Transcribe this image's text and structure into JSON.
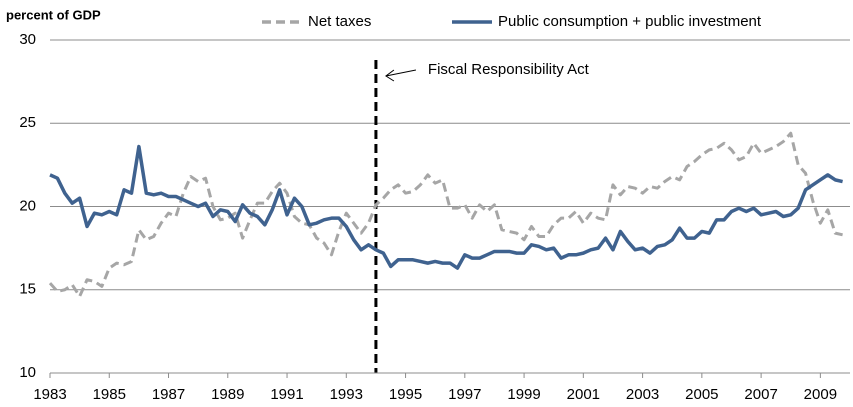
{
  "chart_data": {
    "type": "line",
    "y_label": "percent of GDP",
    "annotation": "Fiscal Responsibility Act",
    "event_x": 1994,
    "x": [
      1983,
      1983.25,
      1983.5,
      1983.75,
      1984,
      1984.25,
      1984.5,
      1984.75,
      1985,
      1985.25,
      1985.5,
      1985.75,
      1986,
      1986.25,
      1986.5,
      1986.75,
      1987,
      1987.25,
      1987.5,
      1987.75,
      1988,
      1988.25,
      1988.5,
      1988.75,
      1989,
      1989.25,
      1989.5,
      1989.75,
      1990,
      1990.25,
      1990.5,
      1990.75,
      1991,
      1991.25,
      1991.5,
      1991.75,
      1992,
      1992.25,
      1992.5,
      1992.75,
      1993,
      1993.25,
      1993.5,
      1993.75,
      1994,
      1994.25,
      1994.5,
      1994.75,
      1995,
      1995.25,
      1995.5,
      1995.75,
      1996,
      1996.25,
      1996.5,
      1996.75,
      1997,
      1997.25,
      1997.5,
      1997.75,
      1998,
      1998.25,
      1998.5,
      1998.75,
      1999,
      1999.25,
      1999.5,
      1999.75,
      2000,
      2000.25,
      2000.5,
      2000.75,
      2001,
      2001.25,
      2001.5,
      2001.75,
      2002,
      2002.25,
      2002.5,
      2002.75,
      2003,
      2003.25,
      2003.5,
      2003.75,
      2004,
      2004.25,
      2004.5,
      2004.75,
      2005,
      2005.25,
      2005.5,
      2005.75,
      2006,
      2006.25,
      2006.5,
      2006.75,
      2007,
      2007.25,
      2007.5,
      2007.75,
      2008,
      2008.25,
      2008.5,
      2008.75,
      2009,
      2009.25,
      2009.5,
      2009.75
    ],
    "series": [
      {
        "name": "Net taxes",
        "color": "#a6a6a6",
        "dashed": true,
        "values": [
          15.4,
          14.9,
          15.0,
          15.3,
          14.6,
          15.6,
          15.5,
          15.2,
          16.3,
          16.6,
          16.5,
          16.7,
          18.6,
          18.0,
          18.2,
          19.0,
          19.6,
          19.4,
          20.8,
          21.8,
          21.5,
          21.7,
          20.0,
          19.2,
          19.3,
          19.6,
          18.1,
          19.2,
          20.2,
          20.2,
          20.9,
          21.4,
          20.8,
          19.4,
          19.0,
          18.9,
          18.1,
          17.8,
          17.1,
          18.5,
          19.6,
          19.0,
          18.4,
          19.0,
          20.1,
          20.5,
          21.0,
          21.3,
          20.8,
          20.9,
          21.3,
          21.9,
          21.4,
          21.6,
          19.9,
          19.9,
          20.1,
          19.3,
          20.1,
          19.7,
          20.1,
          18.6,
          18.5,
          18.4,
          18.0,
          18.8,
          18.2,
          18.2,
          18.9,
          19.3,
          19.3,
          19.7,
          19.0,
          19.6,
          19.3,
          19.2,
          21.3,
          20.7,
          21.2,
          21.1,
          20.8,
          21.2,
          21.1,
          21.5,
          21.8,
          21.6,
          22.4,
          22.7,
          23.1,
          23.4,
          23.5,
          23.8,
          23.4,
          22.8,
          23.0,
          23.8,
          23.2,
          23.4,
          23.6,
          23.9,
          24.4,
          22.5,
          22.0,
          20.3,
          19.0,
          19.8,
          18.4,
          18.3
        ]
      },
      {
        "name": "Public consumption + public investment",
        "color": "#3f628f",
        "dashed": false,
        "values": [
          21.9,
          21.7,
          20.8,
          20.2,
          20.5,
          18.8,
          19.6,
          19.5,
          19.7,
          19.5,
          21.0,
          20.8,
          23.6,
          20.8,
          20.7,
          20.8,
          20.6,
          20.6,
          20.4,
          20.2,
          20.0,
          20.2,
          19.4,
          19.8,
          19.7,
          19.1,
          20.1,
          19.6,
          19.4,
          18.9,
          19.8,
          21.0,
          19.5,
          20.5,
          20.0,
          18.9,
          19.0,
          19.2,
          19.3,
          19.3,
          18.8,
          18.0,
          17.4,
          17.7,
          17.4,
          17.2,
          16.4,
          16.8,
          16.8,
          16.8,
          16.7,
          16.6,
          16.7,
          16.6,
          16.6,
          16.3,
          17.1,
          16.9,
          16.9,
          17.1,
          17.3,
          17.3,
          17.3,
          17.2,
          17.2,
          17.7,
          17.6,
          17.4,
          17.5,
          16.9,
          17.1,
          17.1,
          17.2,
          17.4,
          17.5,
          18.1,
          17.4,
          18.5,
          17.9,
          17.4,
          17.5,
          17.2,
          17.6,
          17.7,
          18.0,
          18.7,
          18.1,
          18.1,
          18.5,
          18.4,
          19.2,
          19.2,
          19.7,
          19.9,
          19.7,
          19.9,
          19.5,
          19.6,
          19.7,
          19.4,
          19.5,
          19.9,
          21.0,
          21.3,
          21.6,
          21.9,
          21.6,
          21.5
        ]
      }
    ],
    "xlim": [
      1983,
      2010
    ],
    "xticks": [
      1983,
      1985,
      1987,
      1989,
      1991,
      1993,
      1995,
      1997,
      1999,
      2001,
      2003,
      2005,
      2007,
      2009
    ],
    "ylim": [
      10,
      30
    ],
    "yticks": [
      10,
      15,
      20,
      25,
      30
    ],
    "grid": true
  }
}
